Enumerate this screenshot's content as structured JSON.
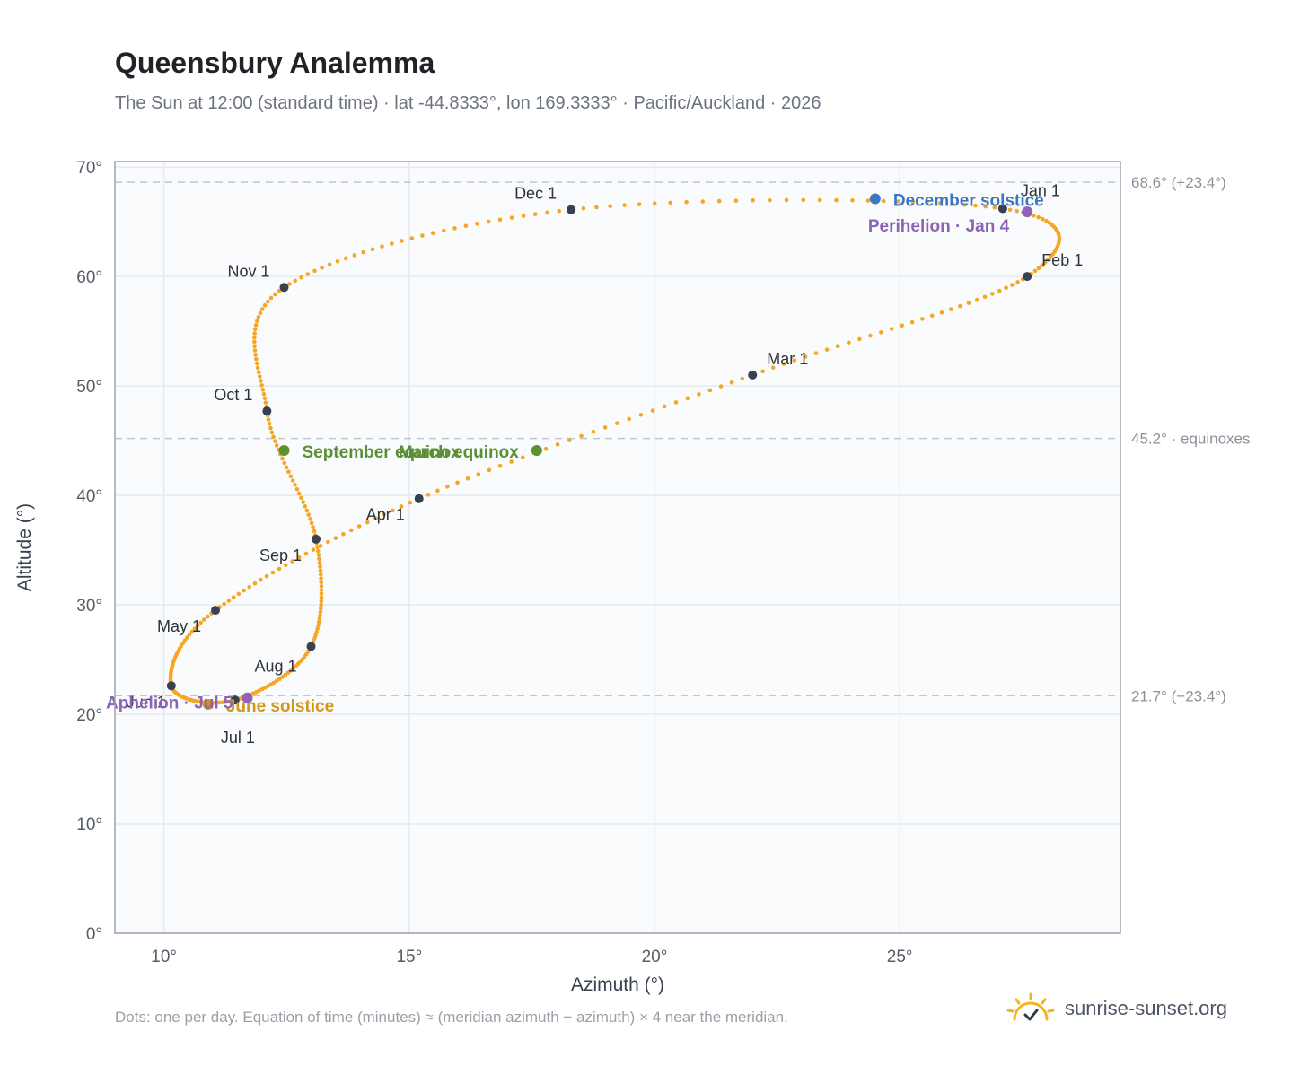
{
  "header": {
    "title": "Queensbury Analemma",
    "subtitle": "The Sun at 12:00 (standard time) · lat -44.8333°, lon 169.3333° · Pacific/Auckland · 2026"
  },
  "footer": {
    "note": "Dots: one per day. Equation of time (minutes) ≈ (meridian azimuth − azimuth) × 4 near the meridian.",
    "brand": "sunrise-sunset.org"
  },
  "colors": {
    "path": "#f5a623",
    "month_dot": "#374151",
    "equinox": "#5a8f32",
    "december_solstice": "#3a78c2",
    "june_solstice": "#d4961c",
    "apsis": "#8e63b5",
    "grid": "#e6eaef",
    "plot_bg": "#f9fbfd",
    "frame": "#9aa3b0",
    "reference_line": "#c0c6ce"
  },
  "brand_icon": "sun-check-icon",
  "chart_data": {
    "type": "scatter",
    "xlabel": "Azimuth (°)",
    "ylabel": "Altitude (°)",
    "xlim": [
      9,
      29.5
    ],
    "ylim": [
      0,
      70.5
    ],
    "x_ticks": [
      10,
      15,
      20,
      25
    ],
    "x_tick_labels": [
      "10°",
      "15°",
      "20°",
      "25°"
    ],
    "y_ticks": [
      0,
      10,
      20,
      30,
      40,
      50,
      60,
      70
    ],
    "y_tick_labels": [
      "0°",
      "10°",
      "20°",
      "30°",
      "40°",
      "50°",
      "60°",
      "70°"
    ],
    "grid": true,
    "reference_lines": [
      {
        "y": 68.6,
        "label": "68.6° (+23.4°)"
      },
      {
        "y": 45.2,
        "label": "45.2° · equinoxes"
      },
      {
        "y": 21.7,
        "label": "21.7° (−23.4°)"
      }
    ],
    "month_points": [
      {
        "label": "Jan 1",
        "x": 27.1,
        "y": 66.2
      },
      {
        "label": "Feb 1",
        "x": 27.6,
        "y": 60.0
      },
      {
        "label": "Mar 1",
        "x": 22.0,
        "y": 51.0
      },
      {
        "label": "Apr 1",
        "x": 15.2,
        "y": 39.7
      },
      {
        "label": "May 1",
        "x": 11.05,
        "y": 29.5
      },
      {
        "label": "Jun 1",
        "x": 10.15,
        "y": 22.6
      },
      {
        "label": "Jul 1",
        "x": 11.45,
        "y": 21.3
      },
      {
        "label": "Aug 1",
        "x": 13.0,
        "y": 26.2
      },
      {
        "label": "Sep 1",
        "x": 13.1,
        "y": 36.0
      },
      {
        "label": "Oct 1",
        "x": 12.1,
        "y": 47.7
      },
      {
        "label": "Nov 1",
        "x": 12.45,
        "y": 59.0
      },
      {
        "label": "Dec 1",
        "x": 18.3,
        "y": 66.1
      }
    ],
    "events": [
      {
        "label": "December solstice",
        "x": 24.5,
        "y": 67.1,
        "color_key": "december_solstice"
      },
      {
        "label": "Perihelion · Jan 4",
        "x": 27.6,
        "y": 65.9,
        "color_key": "apsis"
      },
      {
        "label": "March equinox",
        "x": 17.6,
        "y": 44.1,
        "color_key": "equinox"
      },
      {
        "label": "September equinox",
        "x": 12.45,
        "y": 44.1,
        "color_key": "equinox"
      },
      {
        "label": "June solstice",
        "x": 10.9,
        "y": 20.9,
        "color_key": "june_solstice"
      },
      {
        "label": "Aphelion · Jul 5",
        "x": 11.7,
        "y": 21.5,
        "color_key": "apsis"
      }
    ],
    "path_days": 365
  }
}
